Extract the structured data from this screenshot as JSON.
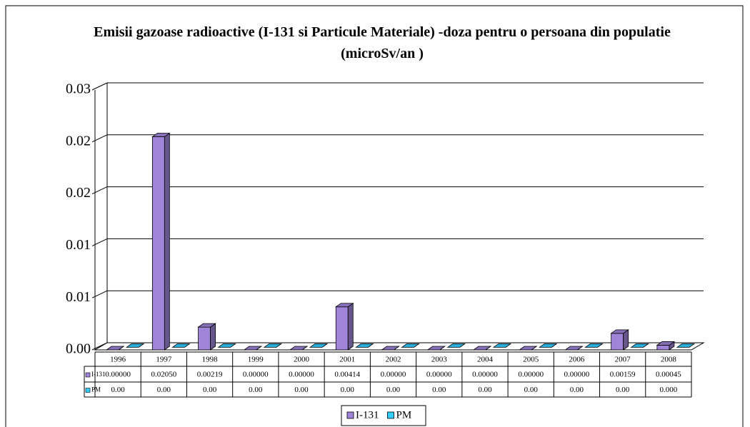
{
  "chart_data": {
    "type": "bar3d",
    "title": "Emisii gazoase radioactive (I-131 si Particule Materiale) -doza pentru o persoana din populatie (microSv/an )",
    "categories": [
      "1996",
      "1997",
      "1998",
      "1999",
      "2000",
      "2001",
      "2002",
      "2003",
      "2004",
      "2005",
      "2006",
      "2007",
      "2008"
    ],
    "series": [
      {
        "name": "I-131",
        "color": "#9f84d8",
        "values": [
          0,
          0.0205,
          0.00219,
          0,
          0,
          0.00414,
          0,
          0,
          0,
          0,
          0,
          0.00159,
          0.00045
        ],
        "value_labels": [
          "0.00000",
          "0.02050",
          "0.00219",
          "0.00000",
          "0.00000",
          "0.00414",
          "0.00000",
          "0.00000",
          "0.00000",
          "0.00000",
          "0.00000",
          "0.00159",
          "0.00045"
        ]
      },
      {
        "name": "PM",
        "color": "#33ccff",
        "values": [
          0,
          0,
          0,
          0,
          0,
          0,
          0,
          0,
          0,
          0,
          0,
          0,
          0
        ],
        "value_labels": [
          "0.00",
          "0.00",
          "0.00",
          "0.00",
          "0.00",
          "0.00",
          "0.00",
          "0.00",
          "0.00",
          "0.00",
          "0.00",
          "0.00",
          "0.000"
        ]
      }
    ],
    "ylim": [
      0,
      0.025
    ],
    "yticks": [
      {
        "value": 0,
        "label": "0.00"
      },
      {
        "value": 0.005,
        "label": "0.01"
      },
      {
        "value": 0.01,
        "label": "0.01"
      },
      {
        "value": 0.015,
        "label": "0.02"
      },
      {
        "value": 0.02,
        "label": "0.02"
      },
      {
        "value": 0.025,
        "label": "0.03"
      }
    ],
    "grid": true,
    "legend": "bottom"
  }
}
